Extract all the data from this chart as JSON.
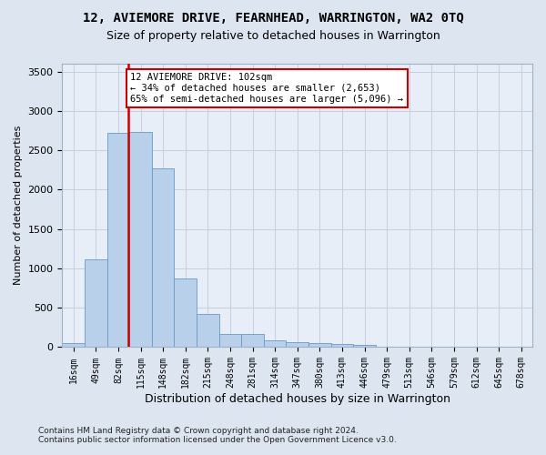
{
  "title": "12, AVIEMORE DRIVE, FEARNHEAD, WARRINGTON, WA2 0TQ",
  "subtitle": "Size of property relative to detached houses in Warrington",
  "xlabel": "Distribution of detached houses by size in Warrington",
  "ylabel": "Number of detached properties",
  "bins": [
    "16sqm",
    "49sqm",
    "82sqm",
    "115sqm",
    "148sqm",
    "182sqm",
    "215sqm",
    "248sqm",
    "281sqm",
    "314sqm",
    "347sqm",
    "380sqm",
    "413sqm",
    "446sqm",
    "479sqm",
    "513sqm",
    "546sqm",
    "579sqm",
    "612sqm",
    "645sqm",
    "678sqm"
  ],
  "values": [
    50,
    1110,
    2720,
    2730,
    2270,
    870,
    425,
    170,
    165,
    90,
    65,
    50,
    35,
    25,
    0,
    0,
    0,
    0,
    0,
    0,
    0
  ],
  "bar_color": "#b8d0ea",
  "bar_edge_color": "#6699cc",
  "vline_color": "#cc0000",
  "vline_x": 2.45,
  "annotation_text": "12 AVIEMORE DRIVE: 102sqm\n← 34% of detached houses are smaller (2,653)\n65% of semi-detached houses are larger (5,096) →",
  "annotation_box_facecolor": "#ffffff",
  "annotation_box_edgecolor": "#cc0000",
  "ylim": [
    0,
    3600
  ],
  "yticks": [
    0,
    500,
    1000,
    1500,
    2000,
    2500,
    3000,
    3500
  ],
  "footer_line1": "Contains HM Land Registry data © Crown copyright and database right 2024.",
  "footer_line2": "Contains public sector information licensed under the Open Government Licence v3.0.",
  "fig_facecolor": "#dce5f0",
  "axes_facecolor": "#e8eef8",
  "grid_color": "#c5cfe0",
  "title_fontsize": 10,
  "subtitle_fontsize": 9,
  "ylabel_fontsize": 8,
  "xlabel_fontsize": 9,
  "tick_fontsize": 7,
  "annot_fontsize": 7.5,
  "footer_fontsize": 6.5
}
